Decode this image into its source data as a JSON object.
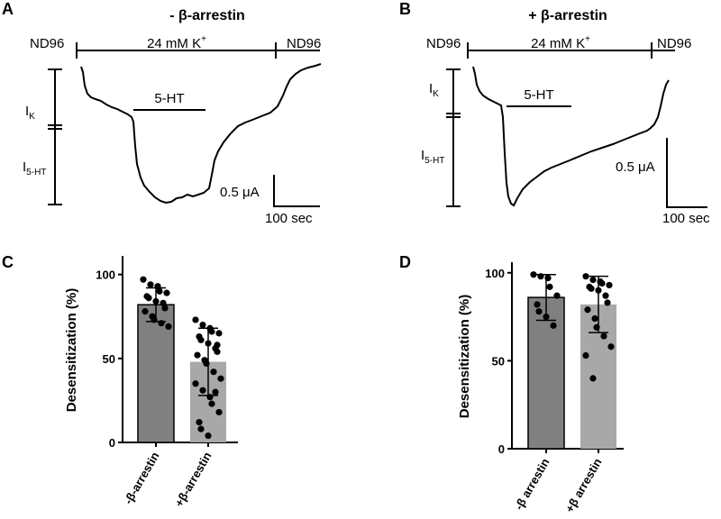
{
  "panels": {
    "A": {
      "label": "A",
      "title": "- β-arrestin",
      "solution_left": "ND96",
      "solution_mid": "24 mM K",
      "solution_mid_sup": "+",
      "solution_right": "ND96",
      "drug": "5-HT",
      "ik_main": "I",
      "ik_sub": "K",
      "i5ht_main": "I",
      "i5ht_sub": "5-HT",
      "scale_current": "0.5 μA",
      "scale_time": "100 sec"
    },
    "B": {
      "label": "B",
      "title": "+ β-arrestin",
      "solution_left": "ND96",
      "solution_mid": "24 mM K",
      "solution_mid_sup": "+",
      "solution_right": "ND96",
      "drug": "5-HT",
      "ik_main": "I",
      "ik_sub": "K",
      "i5ht_main": "I",
      "i5ht_sub": "5-HT",
      "scale_current": "0.5 μA",
      "scale_time": "100 sec"
    },
    "C": {
      "label": "C"
    },
    "D": {
      "label": "D"
    }
  },
  "chart_data": [
    {
      "panel": "C",
      "type": "bar",
      "ylabel": "Desensitization (%)",
      "ylim": [
        0,
        110
      ],
      "yticks": [
        0,
        50,
        100
      ],
      "categories": [
        "-β-arrestin",
        "+β-arrestin"
      ],
      "values": [
        82,
        48
      ],
      "sd": [
        10,
        20
      ],
      "bar_colors": [
        "#808080",
        "#a8a8a8"
      ],
      "points": [
        [
          97,
          94,
          93,
          90,
          89,
          87,
          86,
          84,
          83,
          80,
          78,
          75,
          73,
          71,
          69
        ],
        [
          73,
          70,
          68,
          66,
          65,
          63,
          61,
          59,
          56,
          54,
          52,
          49,
          47,
          42,
          38,
          35,
          31,
          27,
          23,
          18,
          12,
          8,
          4,
          30,
          58
        ]
      ]
    },
    {
      "panel": "D",
      "type": "bar",
      "ylabel": "Desensitization (%)",
      "ylim": [
        0,
        105
      ],
      "yticks": [
        0,
        50,
        100
      ],
      "categories": [
        "-β arrestin",
        "+β arrestin"
      ],
      "values": [
        86,
        82
      ],
      "sd": [
        13,
        16
      ],
      "bar_colors": [
        "#808080",
        "#a8a8a8"
      ],
      "points": [
        [
          99,
          98,
          97,
          92,
          87,
          82,
          78,
          75,
          70
        ],
        [
          98,
          96,
          95,
          94,
          93,
          92,
          91,
          90,
          87,
          83,
          79,
          74,
          69,
          64,
          58,
          53,
          40
        ]
      ]
    }
  ]
}
